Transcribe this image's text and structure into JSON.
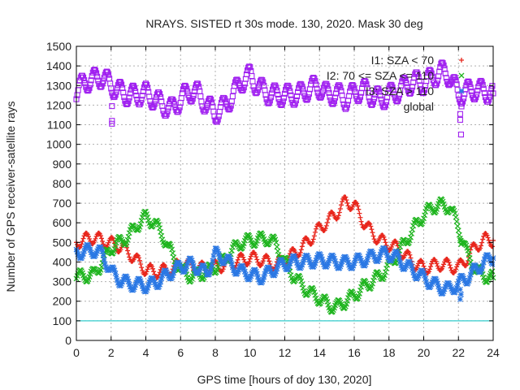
{
  "chart_data": {
    "type": "scatter",
    "title": "NRAYS. SISTED rt 30s mode. 130, 2020. Mask 30 deg",
    "xlabel": "GPS time [hours of doy 130, 2020]",
    "ylabel": "Number of GPS receiver-satellite rays",
    "xlim": [
      0,
      24
    ],
    "ylim": [
      0,
      1500
    ],
    "xticks": [
      0,
      2,
      4,
      6,
      8,
      10,
      12,
      14,
      16,
      18,
      20,
      22,
      24
    ],
    "yticks": [
      0,
      100,
      200,
      300,
      400,
      500,
      600,
      700,
      800,
      900,
      1000,
      1100,
      1200,
      1300,
      1400,
      1500
    ],
    "grid": true,
    "reference_line": {
      "y": 100,
      "color": "#33cccc"
    },
    "legend_position": "top-right",
    "series": [
      {
        "name": "I1: SZA < 70",
        "color": "#e8261c",
        "marker": "+",
        "x": [
          0,
          0.5,
          1,
          1.5,
          2,
          2.5,
          3,
          3.5,
          4,
          4.5,
          5,
          5.5,
          6,
          6.5,
          7,
          7.5,
          8,
          8.5,
          9,
          9.5,
          10,
          10.5,
          11,
          11.5,
          12,
          12.5,
          13,
          13.5,
          14,
          14.5,
          15,
          15.5,
          16,
          16.5,
          17,
          17.5,
          18,
          18.5,
          19,
          19.5,
          20,
          20.5,
          21,
          21.5,
          22,
          22.5,
          23,
          23.5,
          24
        ],
        "y": [
          500,
          515,
          525,
          510,
          495,
          480,
          450,
          405,
          360,
          350,
          355,
          365,
          390,
          385,
          370,
          365,
          375,
          385,
          395,
          410,
          420,
          415,
          400,
          385,
          410,
          440,
          475,
          520,
          570,
          610,
          650,
          710,
          690,
          610,
          550,
          510,
          490,
          470,
          430,
          390,
          370,
          380,
          390,
          380,
          370,
          420,
          480,
          515,
          510
        ]
      },
      {
        "name": "I2: 70 <= SZA <= 110",
        "color": "#1fb51f",
        "marker": "x",
        "x": [
          0,
          0.5,
          1,
          1.5,
          2,
          2.5,
          3,
          3.5,
          4,
          4.5,
          5,
          5.5,
          6,
          6.5,
          7,
          7.5,
          8,
          8.5,
          9,
          9.5,
          10,
          10.5,
          11,
          11.5,
          12,
          12.5,
          13,
          13.5,
          14,
          14.5,
          15,
          15.5,
          16,
          16.5,
          17,
          17.5,
          18,
          18.5,
          19,
          19.5,
          20,
          20.5,
          21,
          21.5,
          22,
          22.5,
          23,
          23.5,
          24
        ],
        "y": [
          325,
          330,
          335,
          400,
          470,
          500,
          530,
          590,
          630,
          600,
          530,
          440,
          360,
          330,
          335,
          350,
          375,
          410,
          460,
          500,
          510,
          515,
          520,
          490,
          400,
          330,
          280,
          240,
          215,
          180,
          170,
          200,
          230,
          270,
          300,
          330,
          380,
          440,
          510,
          580,
          640,
          680,
          690,
          680,
          580,
          440,
          360,
          330,
          320
        ]
      },
      {
        "name": "I3: SZA > 110",
        "color": "#2b78e4",
        "marker": "*",
        "x": [
          0,
          0.5,
          1,
          1.5,
          2,
          2.5,
          3,
          3.5,
          4,
          4.5,
          5,
          5.5,
          6,
          6.5,
          7,
          7.5,
          8,
          8.5,
          9,
          9.5,
          10,
          10.5,
          11,
          11.5,
          12,
          12.5,
          13,
          13.5,
          14,
          14.5,
          15,
          15.5,
          16,
          16.5,
          17,
          17.5,
          18,
          18.5,
          19,
          19.5,
          20,
          20.5,
          21,
          21.5,
          22,
          22.5,
          23,
          23.5,
          24
        ],
        "y": [
          445,
          455,
          460,
          440,
          350,
          310,
          290,
          285,
          280,
          290,
          320,
          350,
          375,
          390,
          370,
          340,
          440,
          420,
          380,
          350,
          340,
          320,
          340,
          370,
          390,
          400,
          400,
          405,
          410,
          405,
          400,
          395,
          400,
          410,
          425,
          440,
          440,
          420,
          380,
          350,
          320,
          290,
          270,
          260,
          290,
          320,
          360,
          400,
          420
        ]
      },
      {
        "name": "global",
        "color": "#a020f0",
        "marker": "square",
        "x": [
          0,
          0.5,
          1,
          1.5,
          2,
          2.5,
          3,
          3.5,
          4,
          4.5,
          5,
          5.5,
          6,
          6.5,
          7,
          7.5,
          8,
          8.5,
          9,
          9.5,
          10,
          10.5,
          11,
          11.5,
          12,
          12.5,
          13,
          13.5,
          14,
          14.5,
          15,
          15.5,
          16,
          16.5,
          17,
          17.5,
          18,
          18.5,
          19,
          19.5,
          20,
          20.5,
          21,
          21.5,
          22,
          22.5,
          23,
          23.5,
          24
        ],
        "y": [
          1270,
          1320,
          1330,
          1345,
          1300,
          1270,
          1250,
          1250,
          1260,
          1230,
          1200,
          1180,
          1230,
          1270,
          1260,
          1200,
          1160,
          1190,
          1250,
          1320,
          1350,
          1290,
          1260,
          1250,
          1250,
          1250,
          1260,
          1290,
          1290,
          1250,
          1260,
          1230,
          1260,
          1280,
          1250,
          1230,
          1250,
          1270,
          1300,
          1320,
          1310,
          1340,
          1370,
          1350,
          1250,
          1270,
          1280,
          1270,
          1260
        ]
      }
    ],
    "outliers": {
      "global": [
        [
          2.05,
          1195
        ],
        [
          2.05,
          1120
        ],
        [
          2.05,
          1105
        ],
        [
          22.1,
          1155
        ],
        [
          22.1,
          1125
        ],
        [
          22.15,
          1050
        ]
      ],
      "I2: 70 <= SZA <= 110": [
        [
          22.1,
          510
        ],
        [
          22.15,
          490
        ]
      ],
      "I3: SZA > 110": [
        [
          22.1,
          260
        ],
        [
          22.15,
          235
        ],
        [
          22.1,
          210
        ]
      ]
    }
  }
}
